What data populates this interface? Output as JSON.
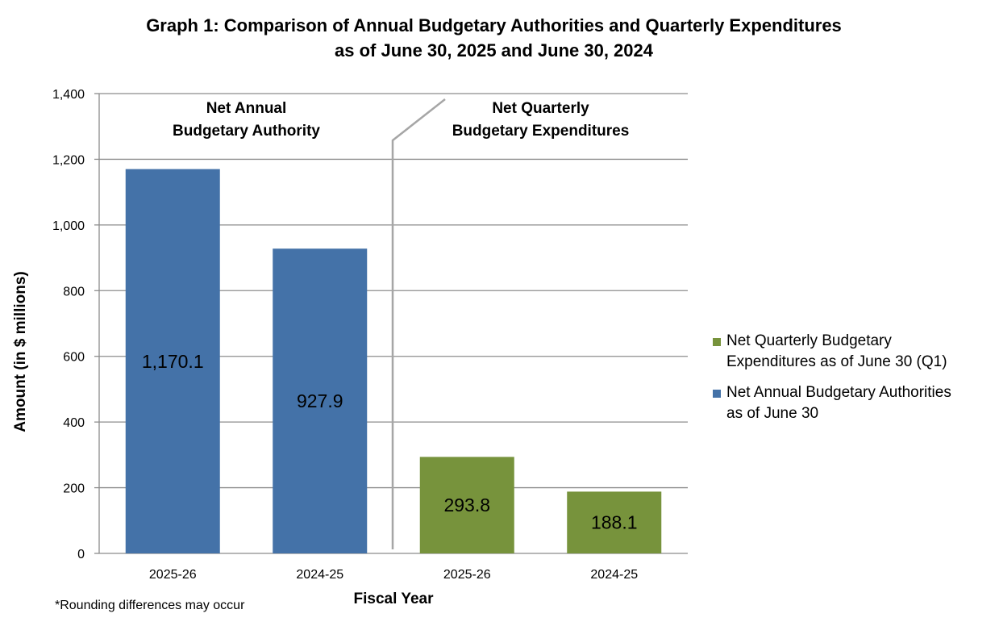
{
  "title": {
    "line1": "Graph 1: Comparison of Annual Budgetary Authorities and Quarterly Expenditures",
    "line2": "as of June 30, 2025 and June 30, 2024"
  },
  "footnote": "*Rounding differences may occur",
  "colors": {
    "annual": "#4472A8",
    "quarterly": "#77933C",
    "grid": "#8C8C8C",
    "divider": "#A6A6A6"
  },
  "chart_data": {
    "type": "bar",
    "title": "Graph 1: Comparison of Annual Budgetary Authorities and Quarterly Expenditures as of June 30, 2025 and June 30, 2024",
    "xlabel": "Fiscal Year",
    "ylabel": "Amount (in $ millions)",
    "ylim": [
      0,
      1400
    ],
    "yticks": [
      0,
      200,
      400,
      600,
      800,
      1000,
      1200,
      1400
    ],
    "ytick_labels": [
      "0",
      "200",
      "400",
      "600",
      "800",
      "1,000",
      "1,200",
      "1,400"
    ],
    "grid": true,
    "legend_position": "right",
    "categories": [
      "2025-26",
      "2024-25",
      "2025-26",
      "2024-25"
    ],
    "values": [
      1170.1,
      927.9,
      293.8,
      188.1
    ],
    "value_labels": [
      "1,170.1",
      "927.9",
      "293.8",
      "188.1"
    ],
    "bar_series": [
      "annual",
      "annual",
      "quarterly",
      "quarterly"
    ],
    "series": [
      {
        "key": "annual",
        "name": "Net Annual Budgetary Authorities as of June 30",
        "color": "#4472A8"
      },
      {
        "key": "quarterly",
        "name": "Net Quarterly Budgetary Expenditures as of June 30 (Q1)",
        "color": "#77933C"
      }
    ],
    "group_labels": [
      {
        "lines": [
          "Net Annual",
          "Budgetary Authority"
        ]
      },
      {
        "lines": [
          "Net Quarterly",
          "Budgetary Expenditures"
        ]
      }
    ]
  },
  "legend": [
    {
      "key": "quarterly",
      "lines": [
        "Net Quarterly Budgetary",
        "Expenditures as of June 30 (Q1)"
      ],
      "color": "#77933C"
    },
    {
      "key": "annual",
      "lines": [
        "Net Annual Budgetary Authorities",
        "as of June 30"
      ],
      "color": "#4472A8"
    }
  ]
}
